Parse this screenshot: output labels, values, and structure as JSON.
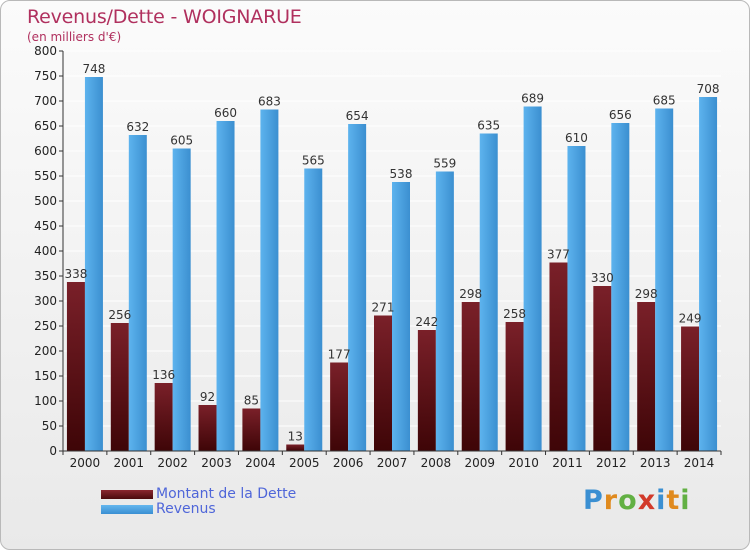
{
  "title": "Revenus/Dette - WOIGNARUE",
  "subtitle": "(en milliers d'€)",
  "brand": {
    "text": "Proxiti",
    "letters": [
      {
        "ch": "P",
        "color": "#3a8fd2"
      },
      {
        "ch": "r",
        "color": "#e08a1e"
      },
      {
        "ch": "o",
        "color": "#62b043"
      },
      {
        "ch": "x",
        "color": "#d23a2a"
      },
      {
        "ch": "i",
        "color": "#3a8fd2"
      },
      {
        "ch": "t",
        "color": "#e08a1e"
      },
      {
        "ch": "i",
        "color": "#62b043"
      }
    ]
  },
  "colors": {
    "debt": "#6e1c22",
    "revenue": "#4ca3e6",
    "axis": "#333333",
    "grid": "#ffffff",
    "legend_text": "#4f66d9",
    "title": "#b0305e"
  },
  "chart_data": {
    "type": "bar",
    "title": "Revenus/Dette - WOIGNARUE",
    "subtitle": "(en milliers d'€)",
    "xlabel": "",
    "ylabel": "",
    "ylim": [
      0,
      800
    ],
    "ytick_step": 50,
    "grid": true,
    "legend": "bottom-left",
    "categories": [
      "2000",
      "2001",
      "2002",
      "2003",
      "2004",
      "2005",
      "2006",
      "2007",
      "2008",
      "2009",
      "2010",
      "2011",
      "2012",
      "2013",
      "2014"
    ],
    "series": [
      {
        "name": "Montant de la Dette",
        "values": [
          338,
          256,
          136,
          92,
          85,
          13,
          177,
          271,
          242,
          298,
          258,
          377,
          330,
          298,
          249
        ]
      },
      {
        "name": "Revenus",
        "values": [
          748,
          632,
          605,
          660,
          683,
          565,
          654,
          538,
          559,
          635,
          689,
          610,
          656,
          685,
          708
        ]
      }
    ]
  }
}
